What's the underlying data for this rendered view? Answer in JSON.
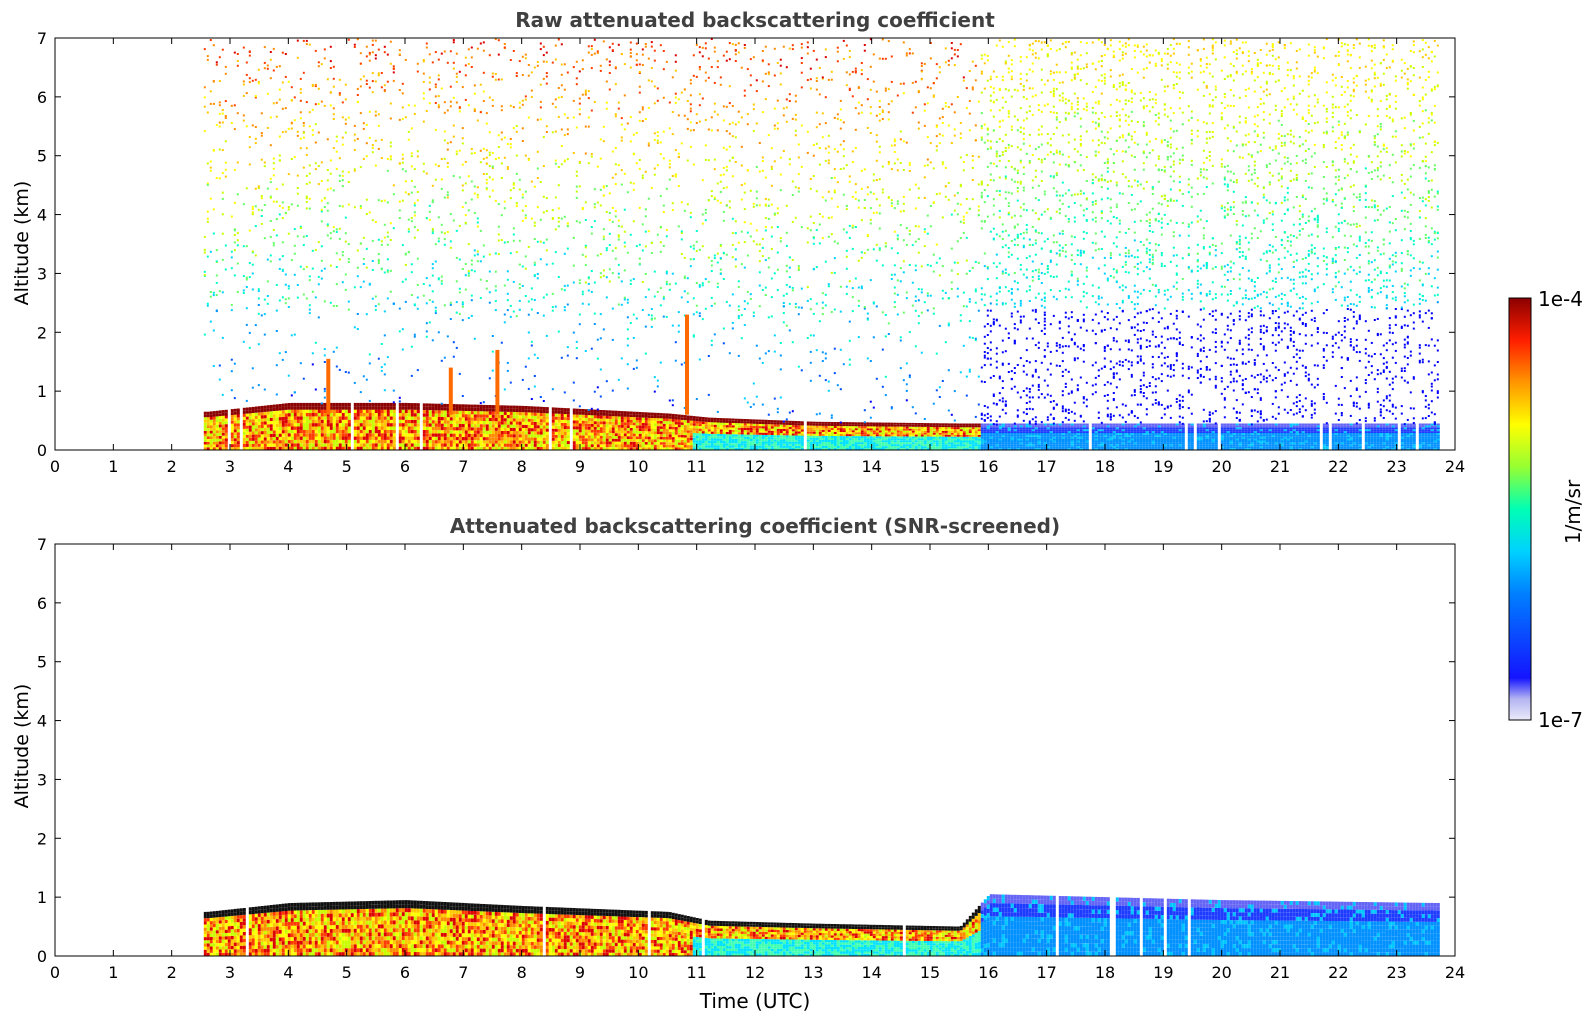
{
  "chart_data": [
    {
      "type": "heatmap",
      "title": "Raw attenuated backscattering coefficient",
      "xlabel": "",
      "ylabel": "Altitude (km)",
      "xlim": [
        0,
        24
      ],
      "ylim": [
        0,
        7
      ],
      "x_ticks": [
        "0",
        "1",
        "2",
        "3",
        "4",
        "5",
        "6",
        "7",
        "8",
        "9",
        "10",
        "11",
        "12",
        "13",
        "14",
        "15",
        "16",
        "17",
        "18",
        "19",
        "20",
        "21",
        "22",
        "23",
        "24"
      ],
      "y_ticks": [
        "0",
        "1",
        "2",
        "3",
        "4",
        "5",
        "6",
        "7"
      ],
      "data_start_hour": 2.55,
      "data_end_hour": 23.75,
      "instrument_switch_hour": 15.85,
      "layer_top_km": [
        {
          "t": 2.6,
          "h": 0.65
        },
        {
          "t": 4.0,
          "h": 0.8
        },
        {
          "t": 6.0,
          "h": 0.8
        },
        {
          "t": 8.0,
          "h": 0.75
        },
        {
          "t": 10.5,
          "h": 0.62
        },
        {
          "t": 11.2,
          "h": 0.55
        },
        {
          "t": 13.0,
          "h": 0.48
        },
        {
          "t": 15.5,
          "h": 0.45
        }
      ],
      "spike_features": [
        {
          "t": 10.8,
          "h": 2.3
        },
        {
          "t": 7.55,
          "h": 1.7
        },
        {
          "t": 4.65,
          "h": 1.55
        },
        {
          "t": 6.75,
          "h": 1.4
        }
      ]
    },
    {
      "type": "heatmap",
      "title": "Attenuated backscattering coefficient (SNR-screened)",
      "xlabel": "Time (UTC)",
      "ylabel": "Altitude (km)",
      "xlim": [
        0,
        24
      ],
      "ylim": [
        0,
        7
      ],
      "x_ticks": [
        "0",
        "1",
        "2",
        "3",
        "4",
        "5",
        "6",
        "7",
        "8",
        "9",
        "10",
        "11",
        "12",
        "13",
        "14",
        "15",
        "16",
        "17",
        "18",
        "19",
        "20",
        "21",
        "22",
        "23",
        "24"
      ],
      "y_ticks": [
        "0",
        "1",
        "2",
        "3",
        "4",
        "5",
        "6",
        "7"
      ],
      "data_start_hour": 2.55,
      "data_end_hour": 23.75,
      "instrument_switch_hour": 15.85,
      "layer_top_km": [
        {
          "t": 2.6,
          "h": 0.75
        },
        {
          "t": 4.0,
          "h": 0.9
        },
        {
          "t": 6.0,
          "h": 0.95
        },
        {
          "t": 8.0,
          "h": 0.85
        },
        {
          "t": 10.5,
          "h": 0.75
        },
        {
          "t": 11.2,
          "h": 0.6
        },
        {
          "t": 13.0,
          "h": 0.55
        },
        {
          "t": 15.5,
          "h": 0.5
        },
        {
          "t": 16.0,
          "h": 1.05
        },
        {
          "t": 20.0,
          "h": 0.95
        },
        {
          "t": 23.7,
          "h": 0.9
        }
      ]
    }
  ],
  "colorbar": {
    "label": "1/m/sr",
    "max_label": "1e-4",
    "min_label": "1e-7",
    "colors": [
      "#ebebfa",
      "#c8c8f5",
      "#9b9bf0",
      "#0000ff",
      "#0050ff",
      "#0096ff",
      "#00d2ff",
      "#00ffc8",
      "#64ff64",
      "#c8ff00",
      "#ffff00",
      "#ffc800",
      "#ff8c00",
      "#ff3c00",
      "#dc0000",
      "#8b0000"
    ]
  }
}
